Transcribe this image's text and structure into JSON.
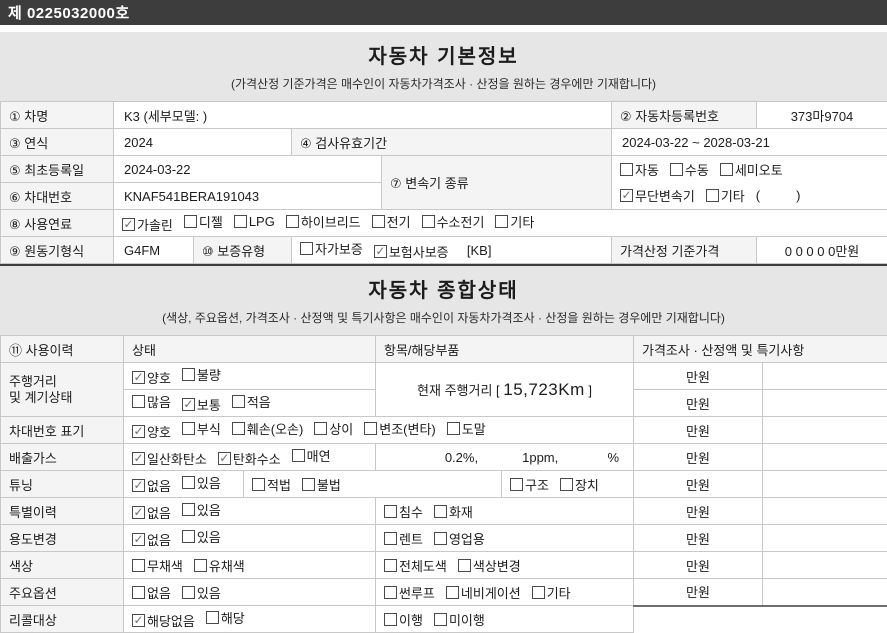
{
  "colors": {
    "topbar": "#3d3d3d",
    "section_bg": "#e6e6e6",
    "label_cell_bg": "#f4f4f4",
    "border": "#c8c8c8"
  },
  "header": {
    "doc_number": "제 0225032000호"
  },
  "basic": {
    "title": "자동차 기본정보",
    "subtitle": "(가격산정 기준가격은 매수인이 자동차가격조사 · 산정을 원하는 경우에만 기재합니다)",
    "car_name": {
      "label": "① 차명",
      "value": "K3 (세부모델: )"
    },
    "reg_number": {
      "label": "② 자동차등록번호",
      "value": "373마9704"
    },
    "year": {
      "label": "③ 연식",
      "value": "2024"
    },
    "inspection": {
      "label": "④ 검사유효기간",
      "value": "2024-03-22 ~ 2028-03-21"
    },
    "first_reg": {
      "label": "⑤ 최초등록일",
      "value": "2024-03-22"
    },
    "vin": {
      "label": "⑥ 차대번호",
      "value": "KNAF541BERA191043"
    },
    "transmission": {
      "label": "⑦ 변속기 종류",
      "row1": [
        {
          "label": "자동",
          "checked": false
        },
        {
          "label": "수동",
          "checked": false
        },
        {
          "label": "세미오토",
          "checked": false
        }
      ],
      "row2": [
        {
          "label": "무단변속기",
          "checked": true
        },
        {
          "label": "기타",
          "checked": false
        },
        {
          "text": "(          )"
        }
      ]
    },
    "fuel": {
      "label": "⑧ 사용연료",
      "items": [
        {
          "label": "가솔린",
          "checked": true
        },
        {
          "label": "디젤",
          "checked": false
        },
        {
          "label": "LPG",
          "checked": false
        },
        {
          "label": "하이브리드",
          "checked": false
        },
        {
          "label": "전기",
          "checked": false
        },
        {
          "label": "수소전기",
          "checked": false
        },
        {
          "label": "기타",
          "checked": false
        }
      ]
    },
    "engine": {
      "label": "⑨ 원동기형식",
      "value": "G4FM"
    },
    "warranty": {
      "label": "⑩ 보증유형",
      "items": [
        {
          "label": "자가보증",
          "checked": false
        },
        {
          "label": "보험사보증",
          "checked": true
        },
        {
          "text": "  [KB]"
        }
      ]
    },
    "price": {
      "label": "가격산정 기준가격",
      "value": "0 0 0 0 0만원"
    }
  },
  "condition": {
    "title": "자동차 종합상태",
    "subtitle": "(색상, 주요옵션, 가격조사 · 산정액 및 특기사항은 매수인이 자동차가격조사 · 산정을 원하는 경우에만 기재합니다)",
    "headers": [
      "⑪ 사용이력",
      "상태",
      "항목/해당부품",
      "가격조사 · 산정액 및 특기사항"
    ],
    "price_unit": "만원",
    "rows": {
      "mileage": {
        "label1": "주행거리",
        "label2": "및 계기상태",
        "status1": [
          {
            "label": "양호",
            "checked": true
          },
          {
            "label": "불량",
            "checked": false
          }
        ],
        "status2": [
          {
            "label": "많음",
            "checked": false
          },
          {
            "label": "보통",
            "checked": true
          },
          {
            "label": "적음",
            "checked": false
          }
        ],
        "item_prefix": "현재 주행거리 [ ",
        "item_value": "15,723Km",
        "item_suffix": " ]"
      },
      "vin_mark": {
        "label": "차대번호 표기",
        "items": [
          {
            "label": "양호",
            "checked": true
          },
          {
            "label": "부식",
            "checked": false
          },
          {
            "label": "훼손(오손)",
            "checked": false
          },
          {
            "label": "상이",
            "checked": false
          },
          {
            "label": "변조(변타)",
            "checked": false
          },
          {
            "label": "도말",
            "checked": false
          }
        ]
      },
      "emission": {
        "label": "배출가스",
        "items": [
          {
            "label": "일산화탄소",
            "checked": true
          },
          {
            "label": "탄화수소",
            "checked": true
          },
          {
            "label": "매연",
            "checked": false
          }
        ],
        "values": [
          "0.2%,",
          "1ppm,",
          "%"
        ]
      },
      "tuning": {
        "label": "튜닝",
        "status": [
          {
            "label": "없음",
            "checked": true
          },
          {
            "label": "있음",
            "checked": false
          }
        ],
        "legality": [
          {
            "label": "적법",
            "checked": false
          },
          {
            "label": "불법",
            "checked": false
          }
        ],
        "kind": [
          {
            "label": "구조",
            "checked": false
          },
          {
            "label": "장치",
            "checked": false
          }
        ]
      },
      "special_history": {
        "label": "특별이력",
        "status": [
          {
            "label": "없음",
            "checked": true
          },
          {
            "label": "있음",
            "checked": false
          }
        ],
        "types": [
          {
            "label": "침수",
            "checked": false
          },
          {
            "label": "화재",
            "checked": false
          }
        ]
      },
      "usage_change": {
        "label": "용도변경",
        "status": [
          {
            "label": "없음",
            "checked": true
          },
          {
            "label": "있음",
            "checked": false
          }
        ],
        "types": [
          {
            "label": "렌트",
            "checked": false
          },
          {
            "label": "영업용",
            "checked": false
          }
        ]
      },
      "color": {
        "label": "색상",
        "status": [
          {
            "label": "무채색",
            "checked": false
          },
          {
            "label": "유채색",
            "checked": false
          }
        ],
        "types": [
          {
            "label": "전체도색",
            "checked": false
          },
          {
            "label": "색상변경",
            "checked": false
          }
        ]
      },
      "options": {
        "label": "주요옵션",
        "status": [
          {
            "label": "없음",
            "checked": false
          },
          {
            "label": "있음",
            "checked": false
          }
        ],
        "types": [
          {
            "label": "썬루프",
            "checked": false
          },
          {
            "label": "네비게이션",
            "checked": false
          },
          {
            "label": "기타",
            "checked": false
          }
        ]
      },
      "recall": {
        "label": "리콜대상",
        "status": [
          {
            "label": "해당없음",
            "checked": true
          },
          {
            "label": "해당",
            "checked": false
          }
        ],
        "types": [
          {
            "label": "이행",
            "checked": false
          },
          {
            "label": "미이행",
            "checked": false
          }
        ]
      }
    }
  }
}
